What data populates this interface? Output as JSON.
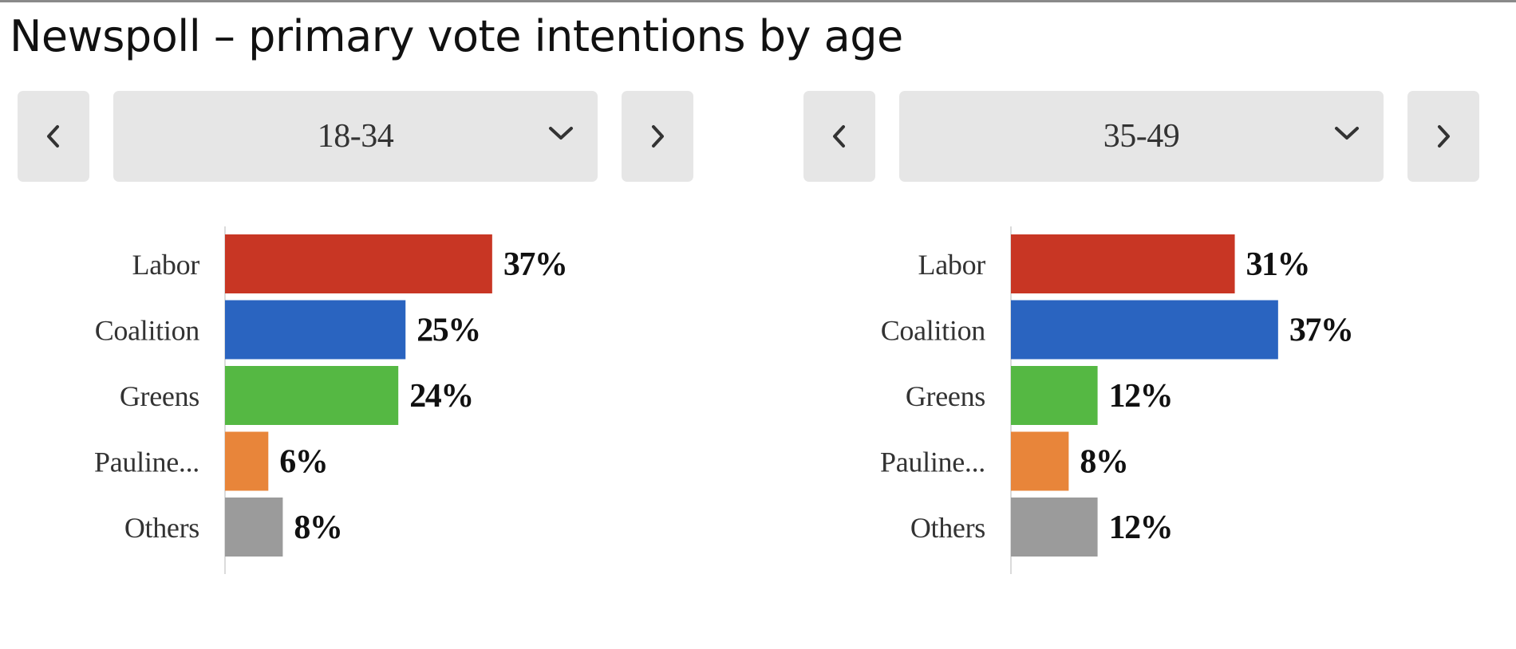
{
  "title": "Newspoll – primary vote intentions by age",
  "colors": {
    "Labor": "#c83624",
    "Coalition": "#2a64c0",
    "Greens": "#55b843",
    "Pauline...": "#e8853a",
    "Others": "#9b9b9b",
    "control_bg": "#e6e6e6"
  },
  "panels": [
    {
      "prev_icon": "chevron-left-icon",
      "next_icon": "chevron-right-icon",
      "dropdown_icon": "chevron-down-icon",
      "selected_age": "18-34"
    },
    {
      "prev_icon": "chevron-left-icon",
      "next_icon": "chevron-right-icon",
      "dropdown_icon": "chevron-down-icon",
      "selected_age": "35-49"
    }
  ],
  "chart_data": [
    {
      "type": "bar",
      "orientation": "horizontal",
      "title": "",
      "xlabel": "",
      "ylabel": "",
      "categories": [
        "Labor",
        "Coalition",
        "Greens",
        "Pauline...",
        "Others"
      ],
      "values": [
        37,
        25,
        24,
        6,
        8
      ],
      "value_labels": [
        "37%",
        "25%",
        "24%",
        "6%",
        "8%"
      ],
      "xlim": [
        0,
        50
      ],
      "grid": false,
      "legend": "none"
    },
    {
      "type": "bar",
      "orientation": "horizontal",
      "title": "",
      "xlabel": "",
      "ylabel": "",
      "categories": [
        "Labor",
        "Coalition",
        "Greens",
        "Pauline...",
        "Others"
      ],
      "values": [
        31,
        37,
        12,
        8,
        12
      ],
      "value_labels": [
        "31%",
        "37%",
        "12%",
        "8%",
        "12%"
      ],
      "xlim": [
        0,
        50
      ],
      "grid": false,
      "legend": "none"
    }
  ]
}
